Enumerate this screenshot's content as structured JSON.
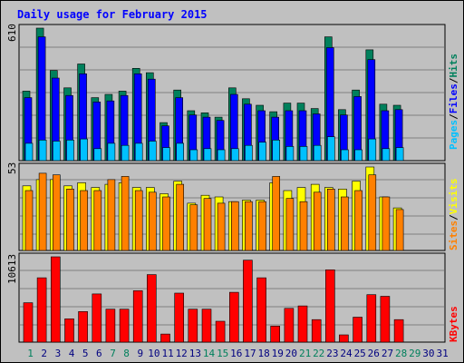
{
  "chart_data": {
    "type": "bar",
    "title": "Daily usage for February 2015",
    "x": [
      "1",
      "2",
      "3",
      "4",
      "5",
      "6",
      "7",
      "8",
      "9",
      "10",
      "11",
      "12",
      "13",
      "14",
      "15",
      "16",
      "17",
      "18",
      "19",
      "20",
      "21",
      "22",
      "23",
      "24",
      "25",
      "26",
      "27",
      "28",
      "29",
      "30",
      "31"
    ],
    "weekend_days": [
      "1",
      "7",
      "8",
      "14",
      "15",
      "21",
      "22",
      "28",
      "29"
    ],
    "legend": {
      "pages": "Pages",
      "files": "Files",
      "hits": "Hits",
      "sites": "Sites",
      "visits": "Visits",
      "kbytes": "KBytes",
      "slash": "/"
    },
    "panels": [
      {
        "name": "hits-files-pages",
        "max_label": "610",
        "ymax": 610,
        "series": [
          {
            "name": "Hits",
            "color": "#00805c",
            "values": [
              320,
              610,
              415,
              335,
              445,
              290,
              305,
              320,
              425,
              405,
              175,
              325,
              230,
              220,
              200,
              335,
              285,
              255,
              225,
              265,
              265,
              240,
              570,
              235,
              325,
              510,
              260,
              255,
              0,
              0,
              0
            ]
          },
          {
            "name": "Files",
            "color": "#0000ff",
            "values": [
              290,
              570,
              380,
              300,
              400,
              270,
              275,
              300,
              400,
              375,
              160,
              290,
              210,
              200,
              185,
              305,
              260,
              230,
              200,
              230,
              230,
              215,
              520,
              210,
              295,
              465,
              230,
              235,
              0,
              0,
              0
            ]
          },
          {
            "name": "Pages",
            "color": "#00c0ff",
            "values": [
              80,
              95,
              90,
              95,
              100,
              55,
              80,
              70,
              80,
              90,
              60,
              80,
              50,
              55,
              50,
              55,
              70,
              85,
              95,
              65,
              65,
              70,
              110,
              50,
              50,
              100,
              55,
              60,
              0,
              0,
              0
            ]
          }
        ]
      },
      {
        "name": "visits-sites",
        "max_label": "53",
        "ymax": 53,
        "series": [
          {
            "name": "Visits",
            "color": "#ffff00",
            "values": [
              41,
              45,
              45,
              41,
              43,
              40,
              42,
              43,
              40,
              40,
              36,
              44,
              30,
              35,
              34,
              31,
              32,
              32,
              43,
              38,
              40,
              42,
              40,
              39,
              44,
              53,
              34,
              27,
              0,
              0,
              0
            ]
          },
          {
            "name": "Sites",
            "color": "#ff8000",
            "values": [
              38,
              49,
              48,
              39,
              38,
              38,
              45,
              47,
              38,
              37,
              34,
              42,
              29,
              33,
              30,
              31,
              31,
              31,
              47,
              33,
              31,
              37,
              39,
              34,
              38,
              48,
              34,
              26,
              0,
              0,
              0
            ]
          }
        ]
      },
      {
        "name": "kbytes",
        "max_label": "10613",
        "ymax": 10613,
        "series": [
          {
            "name": "KBytes",
            "color": "#ff0000",
            "values": [
              4900,
              8000,
              10613,
              2900,
              3800,
              6000,
              4100,
              4100,
              6400,
              8400,
              1000,
              6100,
              4100,
              4100,
              2600,
              6200,
              10200,
              8000,
              2000,
              4200,
              4500,
              2800,
              9000,
              900,
              3100,
              5900,
              5700,
              2800,
              0,
              0,
              0
            ]
          }
        ]
      }
    ]
  }
}
